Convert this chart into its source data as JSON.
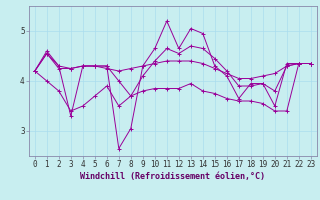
{
  "title": "",
  "xlabel": "Windchill (Refroidissement éolien,°C)",
  "ylabel": "",
  "bg_color": "#c8eef0",
  "line_color": "#990099",
  "grid_color": "#aaddee",
  "x": [
    0,
    1,
    2,
    3,
    4,
    5,
    6,
    7,
    8,
    9,
    10,
    11,
    12,
    13,
    14,
    15,
    16,
    17,
    18,
    19,
    20,
    21,
    22,
    23
  ],
  "lines": [
    [
      4.2,
      4.6,
      4.3,
      3.3,
      4.3,
      4.3,
      4.3,
      2.65,
      3.05,
      4.3,
      4.65,
      5.2,
      4.65,
      5.05,
      4.95,
      4.3,
      4.1,
      3.65,
      3.95,
      3.95,
      3.5,
      4.35,
      4.35,
      4.35
    ],
    [
      4.2,
      4.55,
      4.25,
      4.25,
      4.3,
      4.3,
      4.25,
      4.2,
      4.25,
      4.3,
      4.35,
      4.4,
      4.4,
      4.4,
      4.35,
      4.25,
      4.15,
      4.05,
      4.05,
      4.1,
      4.15,
      4.3,
      4.35,
      4.35
    ],
    [
      4.2,
      4.55,
      4.3,
      4.25,
      4.3,
      4.3,
      4.3,
      4.0,
      3.7,
      4.1,
      4.4,
      4.65,
      4.55,
      4.7,
      4.65,
      4.45,
      4.2,
      3.9,
      3.9,
      3.95,
      3.8,
      4.3,
      4.35,
      4.35
    ],
    [
      4.2,
      4.0,
      3.8,
      3.4,
      3.5,
      3.7,
      3.9,
      3.5,
      3.7,
      3.8,
      3.85,
      3.85,
      3.85,
      3.95,
      3.8,
      3.75,
      3.65,
      3.6,
      3.6,
      3.55,
      3.4,
      3.4,
      4.35,
      4.35
    ]
  ],
  "ylim": [
    2.5,
    5.5
  ],
  "yticks": [
    3,
    4,
    5
  ],
  "xticks": [
    0,
    1,
    2,
    3,
    4,
    5,
    6,
    7,
    8,
    9,
    10,
    11,
    12,
    13,
    14,
    15,
    16,
    17,
    18,
    19,
    20,
    21,
    22,
    23
  ],
  "tick_fontsize": 5.5,
  "label_fontsize": 6.0,
  "spine_color": "#8888aa"
}
